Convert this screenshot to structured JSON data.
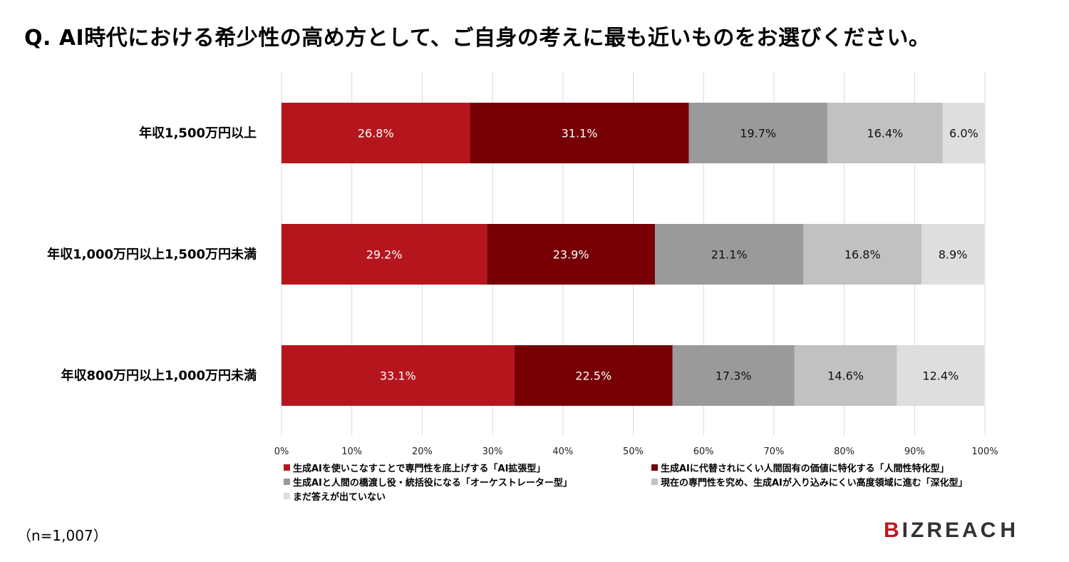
{
  "title": "Q.  AI時代における希少性の高め方として、ご自身の考えに最も近いものをお選びください。",
  "footnote": "（n=1,007）",
  "logo": {
    "text": "BIZREACH",
    "accent_color": "#c0161e"
  },
  "chart_data": {
    "type": "bar",
    "orientation": "horizontal",
    "stacked": true,
    "categories": [
      "年収1,500万円以上",
      "年収1,000万円以上1,500万円未満",
      "年収800万円以上1,000万円未満"
    ],
    "series": [
      {
        "name": "生成AIを使いこなすことで専門性を底上げする「AI拡張型」",
        "color": "#b5161e",
        "label_color": "#ffffff",
        "values": [
          26.8,
          29.2,
          33.1
        ]
      },
      {
        "name": "生成AIに代替されにくい人間固有の価値に特化する「人間性特化型」",
        "color": "#760004",
        "label_color": "#ffffff",
        "values": [
          31.1,
          23.9,
          22.5
        ]
      },
      {
        "name": "生成AIと人間の橋渡し役・統括役になる「オーケストレーター型」",
        "color": "#9a9a9a",
        "label_color": "#111111",
        "values": [
          19.7,
          21.1,
          17.3
        ]
      },
      {
        "name": "現在の専門性を究め、生成AIが入り込みにくい高度領域に進む「深化型」",
        "color": "#c1c1c1",
        "label_color": "#111111",
        "values": [
          16.4,
          16.8,
          14.6
        ]
      },
      {
        "name": "まだ答えが出ていない",
        "color": "#dedede",
        "label_color": "#111111",
        "values": [
          6.0,
          8.9,
          12.4
        ]
      }
    ],
    "value_suffix": "%",
    "xlim": [
      0,
      100
    ],
    "xticks": [
      "0%",
      "10%",
      "20%",
      "30%",
      "40%",
      "50%",
      "60%",
      "70%",
      "80%",
      "90%",
      "100%"
    ],
    "grid": true,
    "legend_position": "bottom"
  }
}
